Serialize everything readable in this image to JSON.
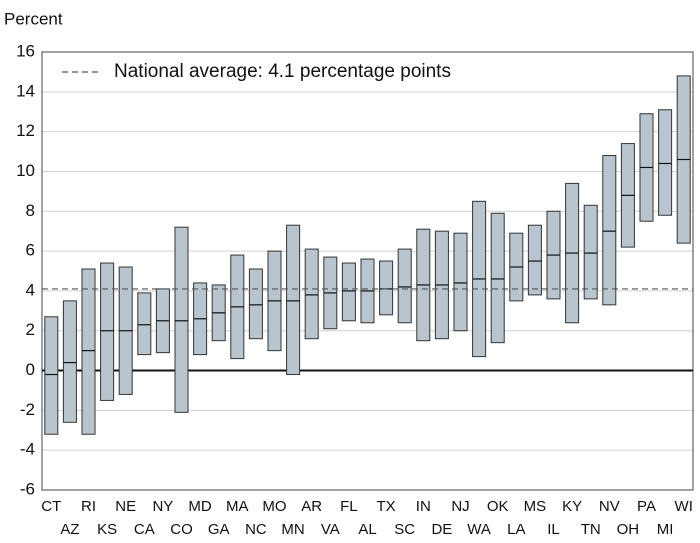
{
  "chart_data": {
    "type": "range_bar",
    "y_axis_label": "Percent",
    "categories": [
      "CT",
      "AZ",
      "RI",
      "KS",
      "NE",
      "CA",
      "NY",
      "CO",
      "MD",
      "GA",
      "MA",
      "NC",
      "MO",
      "MN",
      "AR",
      "VA",
      "FL",
      "AL",
      "TX",
      "SC",
      "IN",
      "DE",
      "NJ",
      "WA",
      "OK",
      "LA",
      "MS",
      "IL",
      "KY",
      "TN",
      "NV",
      "OH",
      "PA",
      "MI",
      "WI"
    ],
    "lows": [
      -3.2,
      -2.6,
      -3.2,
      -1.5,
      -1.2,
      0.8,
      0.9,
      -2.1,
      0.8,
      1.5,
      0.6,
      1.6,
      1.0,
      -0.2,
      1.6,
      2.1,
      2.5,
      2.4,
      2.8,
      2.4,
      1.5,
      1.6,
      2.0,
      0.7,
      1.4,
      3.5,
      3.8,
      3.6,
      2.4,
      3.6,
      3.3,
      6.2,
      7.5,
      7.8,
      6.4
    ],
    "midpoints": [
      -0.2,
      0.4,
      1.0,
      2.0,
      2.0,
      2.3,
      2.5,
      2.5,
      2.6,
      2.9,
      3.2,
      3.3,
      3.5,
      3.5,
      3.8,
      3.9,
      4.0,
      4.0,
      4.1,
      4.2,
      4.3,
      4.3,
      4.4,
      4.6,
      4.6,
      5.2,
      5.5,
      5.8,
      5.9,
      5.9,
      7.0,
      8.8,
      10.2,
      10.4,
      10.6
    ],
    "highs": [
      2.7,
      3.5,
      5.1,
      5.4,
      5.2,
      3.9,
      4.1,
      7.2,
      4.4,
      4.3,
      5.8,
      5.1,
      6.0,
      7.3,
      6.1,
      5.7,
      5.4,
      5.6,
      5.5,
      6.1,
      7.1,
      7.0,
      6.9,
      8.5,
      7.9,
      6.9,
      7.3,
      8.0,
      9.4,
      8.3,
      10.8,
      11.4,
      12.9,
      13.1,
      14.8
    ],
    "bar_color": "#b9c5ce",
    "reference_value": 4.1,
    "reference_label": "National average: 4.1 percentage points",
    "ylim": [
      -6,
      16
    ],
    "yticks": [
      16,
      14,
      12,
      10,
      8,
      6,
      4,
      2,
      0,
      -2,
      -4,
      -6
    ],
    "grid": true
  }
}
